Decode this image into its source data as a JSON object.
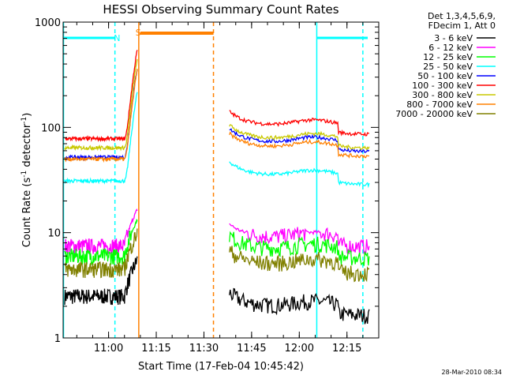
{
  "chart_data": {
    "type": "line",
    "title": "HESSI Observing Summary Count Rates",
    "xlabel": "Start Time (17-Feb-04 10:45:42)",
    "ylabel_main": "Count Rate (s",
    "ylabel_sup1": "-1",
    "ylabel_mid": " detector",
    "ylabel_sup2": "-1",
    "ylabel_end": ")",
    "y_scale": "log",
    "ylim": [
      1,
      1000
    ],
    "xlim": [
      "10:45:42",
      "12:25:00"
    ],
    "x_tick_labels": [
      "11:00",
      "11:15",
      "11:30",
      "11:45",
      "12:00",
      "12:15"
    ],
    "y_tick_labels": [
      "1",
      "10",
      "100",
      "1000"
    ],
    "legend_position": "top-right",
    "legend_header": [
      "Det 1,3,4,5,6,9,",
      "FDecim 1, Att 0"
    ],
    "series": [
      {
        "name": "3 - 6 keV",
        "color": "#000000",
        "values": {
          "pre": 2.5,
          "post": 2.0
        }
      },
      {
        "name": "6 - 12 keV",
        "color": "#ff00ff",
        "values": {
          "pre": 7.5,
          "post": 9.0
        }
      },
      {
        "name": "12 - 25 keV",
        "color": "#00ff00",
        "values": {
          "pre": 6.0,
          "post": 7.0
        }
      },
      {
        "name": "25 - 50 keV",
        "color": "#00ffff",
        "values": {
          "pre": 31,
          "post": 35
        }
      },
      {
        "name": "50 - 100 keV",
        "color": "#0000ff",
        "values": {
          "pre": 52,
          "post": 72
        }
      },
      {
        "name": "100 - 300 keV",
        "color": "#ff0000",
        "values": {
          "pre": 78,
          "post": 105
        }
      },
      {
        "name": "300 - 800 keV",
        "color": "#c8c800",
        "values": {
          "pre": 64,
          "post": 78
        }
      },
      {
        "name": "800 - 7000 keV",
        "color": "#ff8000",
        "values": {
          "pre": 50,
          "post": 65
        }
      },
      {
        "name": "7000 - 20000 keV",
        "color": "#808000",
        "values": {
          "pre": 4.5,
          "post": 5.0
        }
      }
    ],
    "annotations": {
      "night_label": "N",
      "saa_label": "S",
      "night_color": "#00ffff",
      "saa_color": "#ff8000"
    },
    "datestamp": "28-Mar-2010 08:34"
  }
}
